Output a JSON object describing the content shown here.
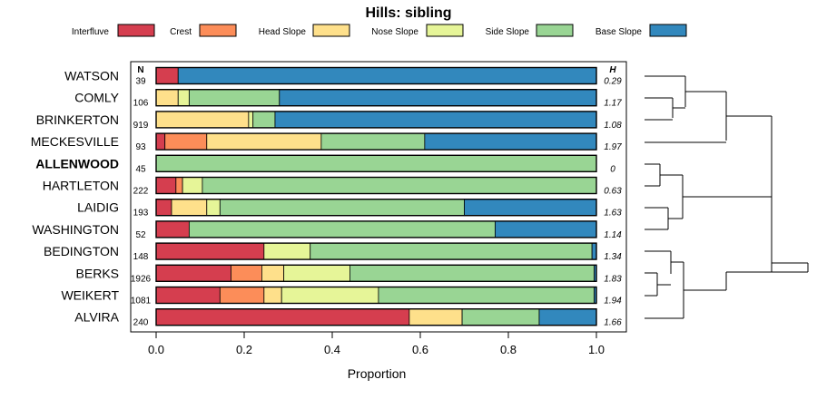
{
  "chart_data": {
    "type": "bar",
    "orientation": "horizontal",
    "stacked": true,
    "title": "Hills: sibling",
    "xlabel": "Proportion",
    "ylabel": "",
    "xlim": [
      0,
      1
    ],
    "xticks": [
      "0.0",
      "0.2",
      "0.4",
      "0.6",
      "0.8",
      "1.0"
    ],
    "legend_position": "top",
    "n_header": "N",
    "h_header": "H",
    "series_names": [
      "Interfluve",
      "Crest",
      "Head Slope",
      "Nose Slope",
      "Side Slope",
      "Base Slope"
    ],
    "colors": [
      "#D53E4F",
      "#FC8D59",
      "#FEE08B",
      "#E6F598",
      "#99D594",
      "#3288BD"
    ],
    "rows": [
      {
        "name": "WATSON",
        "n": "39",
        "h": "0.29",
        "bold": false,
        "values": [
          0.05,
          0,
          0,
          0,
          0,
          0.95
        ]
      },
      {
        "name": "COMLY",
        "n": "106",
        "h": "1.17",
        "bold": false,
        "values": [
          0,
          0,
          0.05,
          0.025,
          0.205,
          0.72
        ]
      },
      {
        "name": "BRINKERTON",
        "n": "919",
        "h": "1.08",
        "bold": false,
        "values": [
          0,
          0,
          0.21,
          0.01,
          0.05,
          0.73
        ]
      },
      {
        "name": "MECKESVILLE",
        "n": "93",
        "h": "1.97",
        "bold": false,
        "values": [
          0.02,
          0.095,
          0.26,
          0,
          0.235,
          0.39
        ]
      },
      {
        "name": "ALLENWOOD",
        "n": "45",
        "h": "0",
        "bold": true,
        "values": [
          0,
          0,
          0,
          0,
          1.0,
          0
        ]
      },
      {
        "name": "HARTLETON",
        "n": "222",
        "h": "0.63",
        "bold": false,
        "values": [
          0.045,
          0.015,
          0,
          0.045,
          0.895,
          0
        ]
      },
      {
        "name": "LAIDIG",
        "n": "193",
        "h": "1.63",
        "bold": false,
        "values": [
          0.035,
          0,
          0.08,
          0.03,
          0.555,
          0.3
        ]
      },
      {
        "name": "WASHINGTON",
        "n": "52",
        "h": "1.14",
        "bold": false,
        "values": [
          0.075,
          0,
          0,
          0,
          0.695,
          0.23
        ]
      },
      {
        "name": "BEDINGTON",
        "n": "148",
        "h": "1.34",
        "bold": false,
        "values": [
          0.245,
          0,
          0,
          0.105,
          0.64,
          0.01
        ]
      },
      {
        "name": "BERKS",
        "n": "1926",
        "h": "1.83",
        "bold": false,
        "values": [
          0.17,
          0.07,
          0.05,
          0.15,
          0.555,
          0.005
        ]
      },
      {
        "name": "WEIKERT",
        "n": "1081",
        "h": "1.94",
        "bold": false,
        "values": [
          0.145,
          0.1,
          0.04,
          0.22,
          0.49,
          0.005
        ]
      },
      {
        "name": "ALVIRA",
        "n": "240",
        "h": "1.66",
        "bold": false,
        "values": [
          0.575,
          0,
          0.12,
          0,
          0.175,
          0.13
        ]
      }
    ],
    "dendrogram": {
      "description": "Hierarchical clustering of rows (visual only)"
    }
  }
}
